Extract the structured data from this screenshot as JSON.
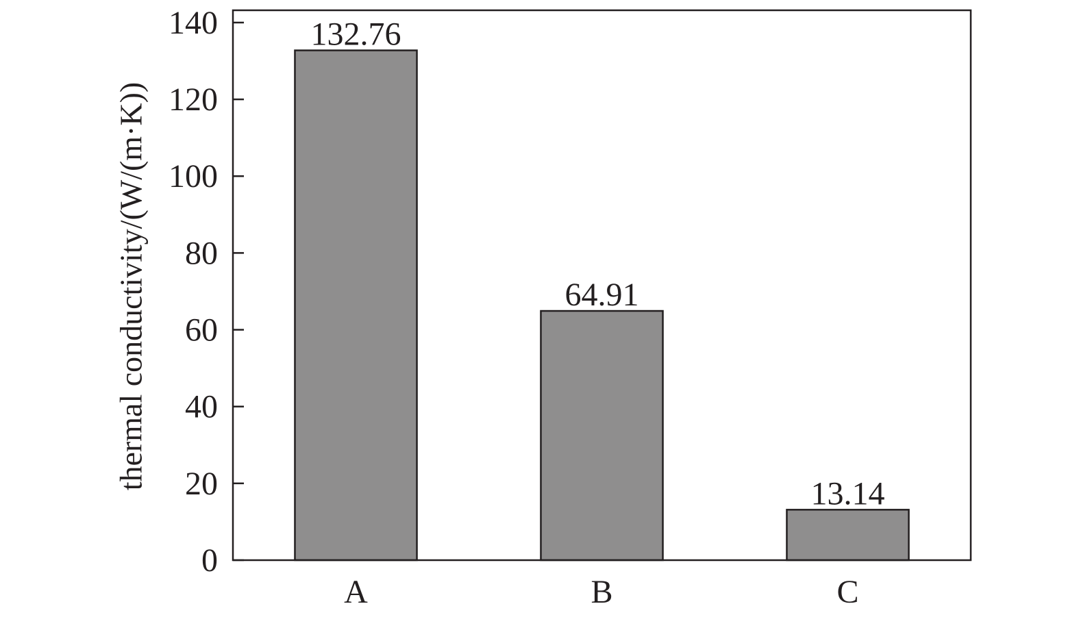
{
  "chart_data": {
    "type": "bar",
    "y_label": "thermal conductivity/(W/(m·K))",
    "categories": [
      "A",
      "B",
      "C"
    ],
    "values": [
      132.76,
      64.91,
      13.14
    ],
    "color": "#8f8e8e",
    "ylim": [
      0,
      143.2
    ],
    "yticks": [
      0,
      20,
      40,
      60,
      80,
      100,
      120,
      140
    ],
    "grid": false
  }
}
